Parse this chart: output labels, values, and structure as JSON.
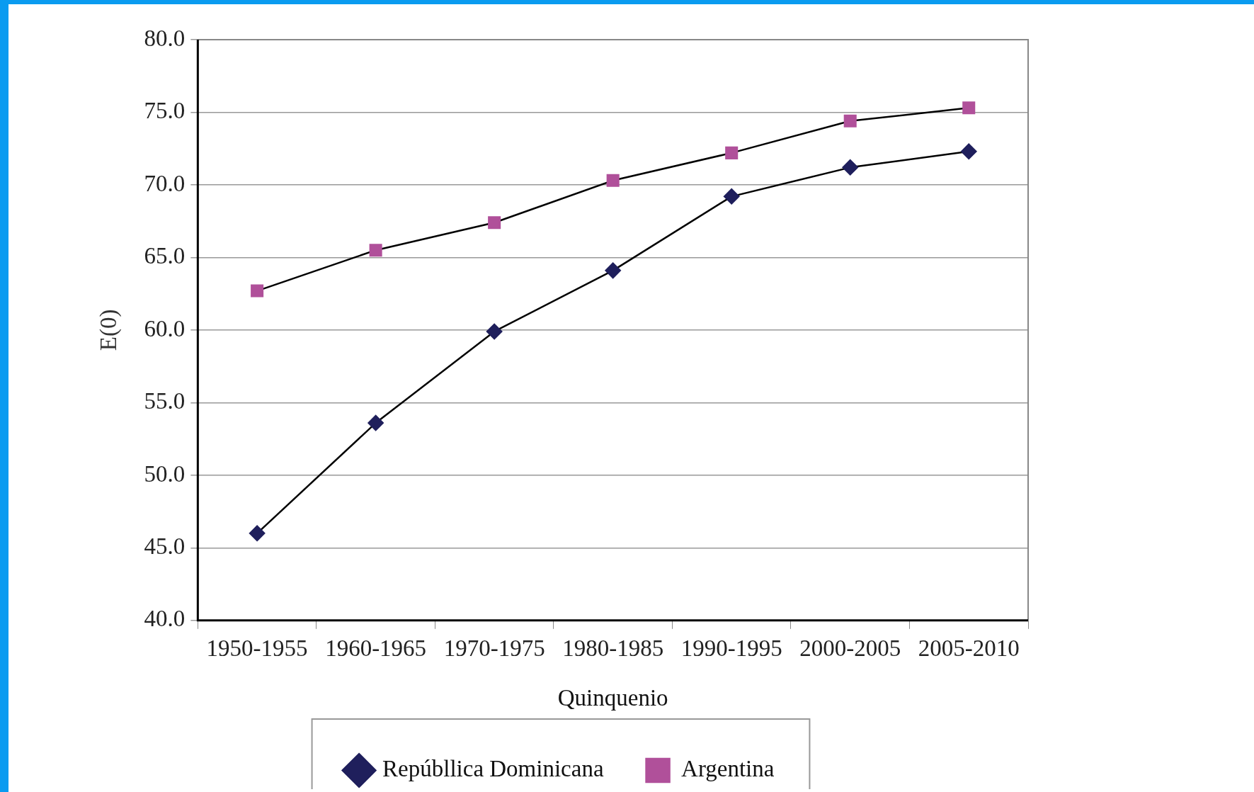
{
  "chart_data": {
    "type": "line",
    "xlabel": "Quinquenio",
    "ylabel": "E(0)",
    "categories": [
      "1950-1955",
      "1960-1965",
      "1970-1975",
      "1980-1985",
      "1990-1995",
      "2000-2005",
      "2005-2010"
    ],
    "series": [
      {
        "name": "Repúbllica Dominicana",
        "color": "#1f1f5c",
        "marker": "diamond",
        "values": [
          46.0,
          53.6,
          59.9,
          64.1,
          69.2,
          71.2,
          72.3
        ]
      },
      {
        "name": "Argentina",
        "color": "#b0509a",
        "marker": "square",
        "values": [
          62.7,
          65.5,
          67.4,
          70.3,
          72.2,
          74.4,
          75.3
        ]
      }
    ],
    "ylim": [
      40,
      80
    ],
    "yticks": [
      {
        "value": 40,
        "label": "40.0"
      },
      {
        "value": 45,
        "label": "45.0"
      },
      {
        "value": 50,
        "label": "50.0"
      },
      {
        "value": 55,
        "label": "55.0"
      },
      {
        "value": 60,
        "label": "60.0"
      },
      {
        "value": 65,
        "label": "65.0"
      },
      {
        "value": 70,
        "label": "70.0"
      },
      {
        "value": 75,
        "label": "75.0"
      },
      {
        "value": 80,
        "label": "80.0"
      }
    ],
    "grid": "y",
    "legend": "bottom",
    "line_style": "solid"
  }
}
